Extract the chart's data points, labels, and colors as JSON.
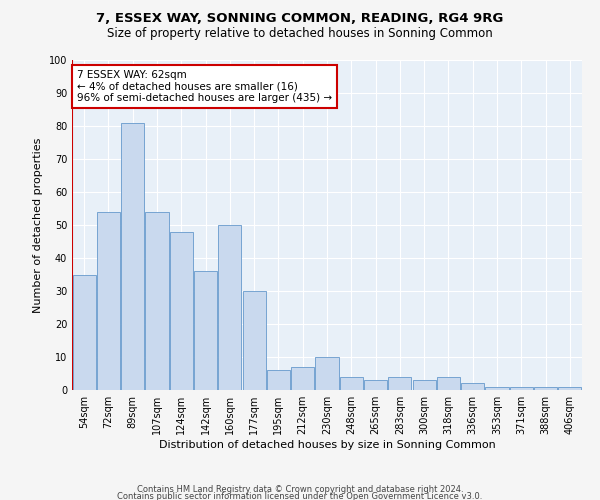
{
  "title": "7, ESSEX WAY, SONNING COMMON, READING, RG4 9RG",
  "subtitle": "Size of property relative to detached houses in Sonning Common",
  "xlabel": "Distribution of detached houses by size in Sonning Common",
  "ylabel": "Number of detached properties",
  "categories": [
    "54sqm",
    "72sqm",
    "89sqm",
    "107sqm",
    "124sqm",
    "142sqm",
    "160sqm",
    "177sqm",
    "195sqm",
    "212sqm",
    "230sqm",
    "248sqm",
    "265sqm",
    "283sqm",
    "300sqm",
    "318sqm",
    "336sqm",
    "353sqm",
    "371sqm",
    "388sqm",
    "406sqm"
  ],
  "values": [
    35,
    54,
    81,
    54,
    48,
    36,
    50,
    30,
    6,
    7,
    10,
    4,
    3,
    4,
    3,
    4,
    2,
    1,
    1,
    1,
    1
  ],
  "bar_color": "#c9d9ee",
  "bar_edge_color": "#6699cc",
  "background_color": "#e8f0f8",
  "annotation_text": "7 ESSEX WAY: 62sqm\n← 4% of detached houses are smaller (16)\n96% of semi-detached houses are larger (435) →",
  "annotation_box_color": "#ffffff",
  "annotation_box_edge": "#cc0000",
  "ylim": [
    0,
    100
  ],
  "yticks": [
    0,
    10,
    20,
    30,
    40,
    50,
    60,
    70,
    80,
    90,
    100
  ],
  "footer_line1": "Contains HM Land Registry data © Crown copyright and database right 2024.",
  "footer_line2": "Contains public sector information licensed under the Open Government Licence v3.0.",
  "title_fontsize": 9.5,
  "subtitle_fontsize": 8.5,
  "tick_fontsize": 7,
  "xlabel_fontsize": 8,
  "ylabel_fontsize": 8,
  "footer_fontsize": 6,
  "fig_bg": "#f5f5f5"
}
